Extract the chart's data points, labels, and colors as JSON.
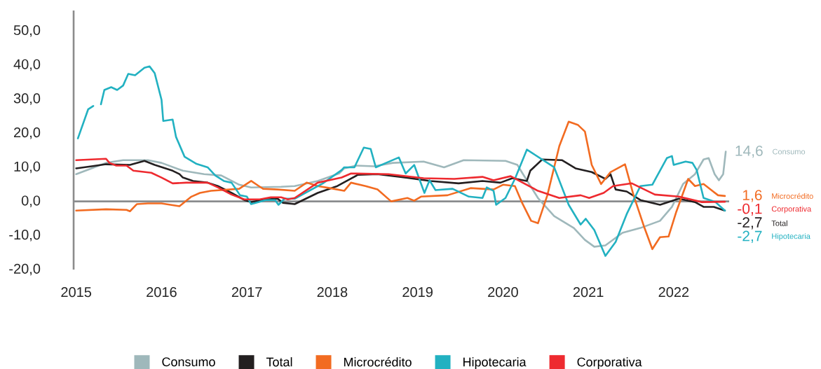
{
  "chart_data": {
    "type": "line",
    "xlim": [
      2014.97,
      2022.65
    ],
    "ylim": [
      -20,
      56
    ],
    "xticks": [
      2015,
      2016,
      2017,
      2018,
      2019,
      2020,
      2021,
      2022
    ],
    "yticks": [
      {
        "value": -20,
        "label": "-20,0"
      },
      {
        "value": -10,
        "label": "-10,0"
      },
      {
        "value": 0,
        "label": "0,0"
      },
      {
        "value": 10,
        "label": "10,0"
      },
      {
        "value": 20,
        "label": "20,0"
      },
      {
        "value": 30,
        "label": "30,0"
      },
      {
        "value": 40,
        "label": "40,0"
      },
      {
        "value": 50,
        "label": "50,0"
      }
    ],
    "legend": "bottom",
    "ref_lines": [
      {
        "axis": "y",
        "value": 0,
        "color": "#8a8c8e"
      }
    ],
    "annotations": [
      "14,6",
      "-2,7",
      "1,6",
      "-2,7",
      "-0,1"
    ],
    "series": [
      {
        "name": "Consumo",
        "color": "#9fb8bb",
        "x": [
          2015,
          2015.18,
          2015.35,
          2015.55,
          2015.84,
          2016,
          2016.25,
          2016.5,
          2016.7,
          2016.91,
          2017.05,
          2017.4,
          2017.56,
          2017.83,
          2018.08,
          2018.14,
          2018.28,
          2018.49,
          2018.71,
          2019.07,
          2019.31,
          2019.54,
          2020.03,
          2020.17,
          2020.22,
          2020.41,
          2020.6,
          2020.83,
          2020.96,
          2021.07,
          2021.2,
          2021.4,
          2021.61,
          2021.84,
          2021.98,
          2022.11,
          2022.25,
          2022.35,
          2022.41,
          2022.48,
          2022.53,
          2022.58,
          2022.61
        ],
        "values": [
          8,
          9.7,
          11.3,
          12.1,
          12.1,
          11.3,
          9,
          8,
          7.6,
          4.9,
          4.1,
          4.3,
          4.5,
          6,
          8.2,
          9.7,
          10.5,
          10.3,
          11.3,
          11.7,
          10,
          12.1,
          11.9,
          10.7,
          8.6,
          1,
          -4.3,
          -7.8,
          -11.3,
          -13.3,
          -12.9,
          -9.2,
          -7.8,
          -5.7,
          -1.6,
          5.1,
          8,
          12.3,
          12.7,
          8,
          6.2,
          8,
          14.6
        ]
      },
      {
        "name": "Total",
        "color": "#231f20",
        "x": [
          2015,
          2015.18,
          2015.35,
          2015.63,
          2015.8,
          2015.92,
          2016.13,
          2016.21,
          2016.25,
          2016.37,
          2016.54,
          2016.66,
          2016.82,
          2016.97,
          2017.05,
          2017.23,
          2017.36,
          2017.42,
          2017.56,
          2017.83,
          2018.06,
          2018.3,
          2018.53,
          2018.8,
          2019.15,
          2019.48,
          2019.76,
          2019.97,
          2020.11,
          2020.28,
          2020.32,
          2020.46,
          2020.69,
          2020.85,
          2021.04,
          2021.2,
          2021.26,
          2021.32,
          2021.45,
          2021.61,
          2021.84,
          2022.06,
          2022.25,
          2022.35,
          2022.47,
          2022.6
        ],
        "values": [
          9.7,
          10.3,
          10.9,
          10.7,
          11.9,
          10.7,
          9,
          8,
          7,
          6,
          5.5,
          4.5,
          2.5,
          0.4,
          -0.2,
          0.6,
          0.8,
          -0.4,
          -0.8,
          2.5,
          4.5,
          7.8,
          8,
          7.2,
          6,
          5.3,
          6,
          5.5,
          6.8,
          6,
          9,
          12.3,
          12.1,
          9.7,
          8.6,
          6.6,
          8,
          3.5,
          2.9,
          0.4,
          -1,
          0.8,
          -0.2,
          -1.6,
          -1.6,
          -2.7
        ]
      },
      {
        "name": "Microcrédito",
        "color": "#f26b21",
        "x": [
          2015,
          2015.35,
          2015.59,
          2015.63,
          2015.71,
          2015.84,
          2016,
          2016.21,
          2016.35,
          2016.45,
          2016.58,
          2016.91,
          2017.05,
          2017.14,
          2017.19,
          2017.36,
          2017.56,
          2017.7,
          2017.83,
          2017.97,
          2018.14,
          2018.22,
          2018.39,
          2018.53,
          2018.69,
          2018.88,
          2018.96,
          2019.04,
          2019.35,
          2019.62,
          2019.89,
          2020,
          2020.14,
          2020.22,
          2020.33,
          2020.41,
          2020.52,
          2020.66,
          2020.77,
          2020.88,
          2020.96,
          2021.04,
          2021.15,
          2021.26,
          2021.43,
          2021.53,
          2021.65,
          2021.75,
          2021.84,
          2021.94,
          2022.03,
          2022.17,
          2022.25,
          2022.35,
          2022.52,
          2022.6
        ],
        "values": [
          -2.7,
          -2.3,
          -2.5,
          -2.9,
          -0.8,
          -0.6,
          -0.6,
          -1.4,
          1.4,
          2.5,
          3.1,
          3.7,
          6,
          4.5,
          3.7,
          3.5,
          3.1,
          5.5,
          4.5,
          3.9,
          3.1,
          5.5,
          4.5,
          3.5,
          0,
          1,
          0.2,
          1.4,
          1.8,
          3.9,
          3.5,
          4.9,
          4.5,
          -0.2,
          -5.7,
          -6.4,
          1.8,
          16.2,
          23.4,
          22.4,
          20.5,
          10.7,
          5.1,
          8.6,
          10.9,
          1.8,
          -7.2,
          -14,
          -10.5,
          -10.3,
          -3.1,
          6.6,
          4.5,
          5.1,
          1.8,
          1.6
        ]
      },
      {
        "name": "Hipotecaria",
        "color": "#22b1c1",
        "x": [
          2015.02,
          2015.14,
          2015.2,
          2015.24,
          2015.29,
          2015.33,
          2015.41,
          2015.48,
          2015.55,
          2015.61,
          2015.69,
          2015.8,
          2015.86,
          2015.92,
          2016,
          2016.02,
          2016.13,
          2016.17,
          2016.27,
          2016.41,
          2016.54,
          2016.63,
          2016.73,
          2016.82,
          2016.92,
          2017,
          2017.05,
          2017.14,
          2017.22,
          2017.33,
          2017.37,
          2017.44,
          2017.56,
          2017.89,
          2018.11,
          2018.14,
          2018.26,
          2018.37,
          2018.45,
          2018.51,
          2018.65,
          2018.78,
          2018.86,
          2018.96,
          2019.08,
          2019.14,
          2019.21,
          2019.41,
          2019.6,
          2019.76,
          2019.81,
          2019.89,
          2019.92,
          2020.03,
          2020.14,
          2020.28,
          2020.6,
          2020.77,
          2020.91,
          2020.97,
          2021.07,
          2021.2,
          2021.32,
          2021.45,
          2021.61,
          2021.75,
          2021.92,
          2021.98,
          2022,
          2022.14,
          2022.22,
          2022.27,
          2022.35,
          2022.49,
          2022.6
        ],
        "values": [
          18.5,
          27,
          28,
          null,
          28.5,
          32.7,
          33.5,
          32.7,
          34,
          37.4,
          37,
          39.2,
          39.6,
          37.6,
          29.8,
          23.6,
          24,
          18.9,
          13.1,
          11,
          10,
          7.6,
          6,
          5.5,
          1.8,
          1.4,
          -0.8,
          -0.2,
          0.4,
          0.4,
          -1,
          0.8,
          0.8,
          5.3,
          9.2,
          10,
          10,
          15.8,
          15.4,
          10,
          11.5,
          12.9,
          8.2,
          10.7,
          2.5,
          6.2,
          3.3,
          3.7,
          1.4,
          1,
          4.1,
          3.1,
          -1,
          1,
          6.6,
          15.2,
          10,
          -1,
          -6.8,
          -5.1,
          -8.4,
          -16,
          -11.9,
          -3.7,
          4.5,
          4.9,
          12.7,
          13.3,
          10.7,
          11.7,
          11.3,
          9.2,
          1,
          -0.2,
          -2.7
        ]
      },
      {
        "name": "Corporativa",
        "color": "#ee2a2f",
        "x": [
          2015,
          2015.35,
          2015.39,
          2015.47,
          2015.59,
          2015.67,
          2015.88,
          2016,
          2016.13,
          2016.29,
          2016.54,
          2016.66,
          2016.82,
          2016.97,
          2017.15,
          2017.28,
          2017.4,
          2017.48,
          2017.56,
          2017.83,
          2018.11,
          2018.22,
          2018.66,
          2019.07,
          2019.43,
          2019.76,
          2019.89,
          2020.09,
          2020.41,
          2020.66,
          2020.91,
          2021.01,
          2021.18,
          2021.29,
          2021.51,
          2021.78,
          2022.06,
          2022.33,
          2022.6
        ],
        "values": [
          12.1,
          12.5,
          11.3,
          10.5,
          10.5,
          9,
          8.4,
          7,
          5.3,
          5.5,
          5.5,
          4.1,
          2,
          0.6,
          0.6,
          1.2,
          1.2,
          0.6,
          1,
          5.5,
          7,
          8.2,
          8,
          6.8,
          6.6,
          7.2,
          6.2,
          7.4,
          3.1,
          1,
          1.8,
          1,
          2.5,
          4.5,
          5.3,
          2,
          1.4,
          -0.2,
          -0.1
        ]
      }
    ]
  }
}
